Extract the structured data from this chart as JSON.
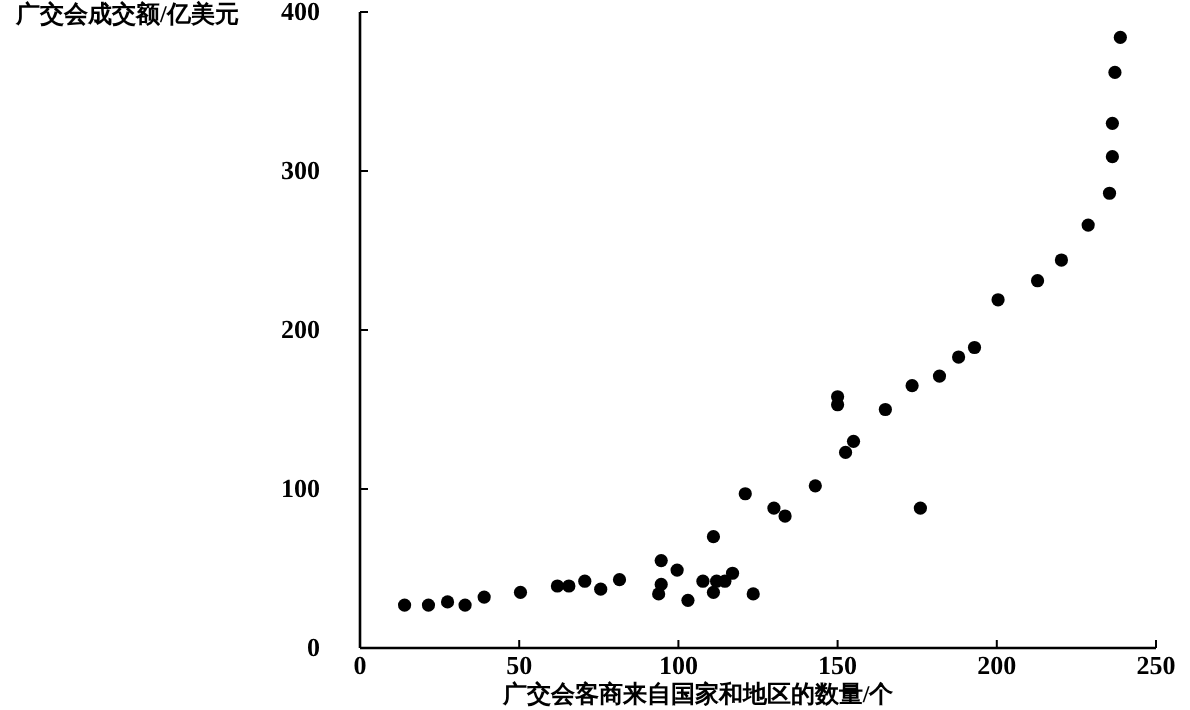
{
  "chart_data": {
    "type": "scatter",
    "xlabel": "广交会客商来自国家和地区的数量/个",
    "ylabel": "广交会成交额/亿美元",
    "x": [
      14,
      21.5,
      27.5,
      33,
      39,
      50.4,
      62,
      65.6,
      70.6,
      75.6,
      81.5,
      94.6,
      94.6,
      93.8,
      99.6,
      103,
      107.7,
      111,
      111,
      112,
      114.6,
      117,
      121,
      123.5,
      130,
      133.5,
      143,
      150,
      150,
      152.5,
      155,
      165,
      173.4,
      182,
      188,
      193,
      200.4,
      212.8,
      220.3,
      228.7,
      235.4,
      236.3,
      236.3,
      237.1,
      238.8,
      176
    ],
    "values": [
      27,
      27,
      29,
      27,
      32,
      35,
      39,
      39,
      42,
      37,
      43,
      55,
      40,
      34,
      49,
      30,
      42,
      70,
      35,
      42,
      42,
      47,
      97,
      34,
      88,
      83,
      102,
      158,
      153,
      123,
      130,
      150,
      165,
      171,
      183,
      189,
      219,
      231,
      244,
      266,
      286,
      309,
      330,
      362,
      384,
      88
    ],
    "color": "#000000",
    "marker": "circle",
    "xlim": [
      0,
      250
    ],
    "xticks": [
      0,
      50,
      100,
      150,
      200,
      250
    ],
    "ylim": [
      0,
      400
    ],
    "yticks": [
      0,
      100,
      200,
      300,
      400
    ],
    "grid": false
  }
}
